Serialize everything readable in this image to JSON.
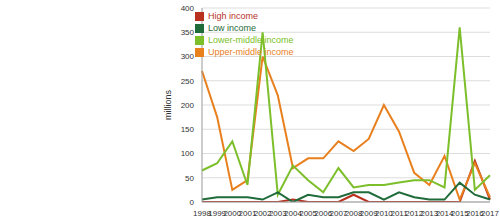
{
  "chart_data": {
    "type": "line",
    "ylabel": "millions",
    "categories": [
      "1998",
      "1999",
      "2000",
      "2001",
      "2002",
      "2003",
      "2004",
      "2005",
      "2006",
      "2007",
      "2008",
      "2009",
      "2010",
      "2011",
      "2012",
      "2013",
      "2014",
      "2015",
      "2016",
      "2017"
    ],
    "series": [
      {
        "name": "High income",
        "color": "#b8311f",
        "values": [
          0,
          0,
          0,
          0,
          0,
          0,
          5,
          0,
          0,
          0,
          15,
          0,
          0,
          0,
          0,
          0,
          0,
          0,
          85,
          5
        ]
      },
      {
        "name": "Upper-middle income",
        "color": "#e8801e",
        "values": [
          270,
          175,
          25,
          45,
          300,
          220,
          70,
          90,
          90,
          125,
          105,
          130,
          200,
          145,
          60,
          35,
          95,
          5,
          80,
          10
        ]
      },
      {
        "name": "Lower-middle income",
        "color": "#7cbf2a",
        "values": [
          65,
          80,
          125,
          35,
          350,
          15,
          75,
          45,
          20,
          70,
          30,
          35,
          35,
          40,
          45,
          45,
          30,
          360,
          25,
          55
        ]
      },
      {
        "name": "Low income",
        "color": "#1f6b3a",
        "values": [
          5,
          10,
          10,
          10,
          5,
          20,
          0,
          15,
          10,
          10,
          20,
          20,
          5,
          20,
          10,
          5,
          5,
          40,
          15,
          5
        ]
      }
    ],
    "ylim": [
      0,
      400
    ],
    "yticks": [
      0,
      50,
      100,
      150,
      200,
      250,
      300,
      350,
      400
    ],
    "grid": true,
    "legend": "top"
  }
}
